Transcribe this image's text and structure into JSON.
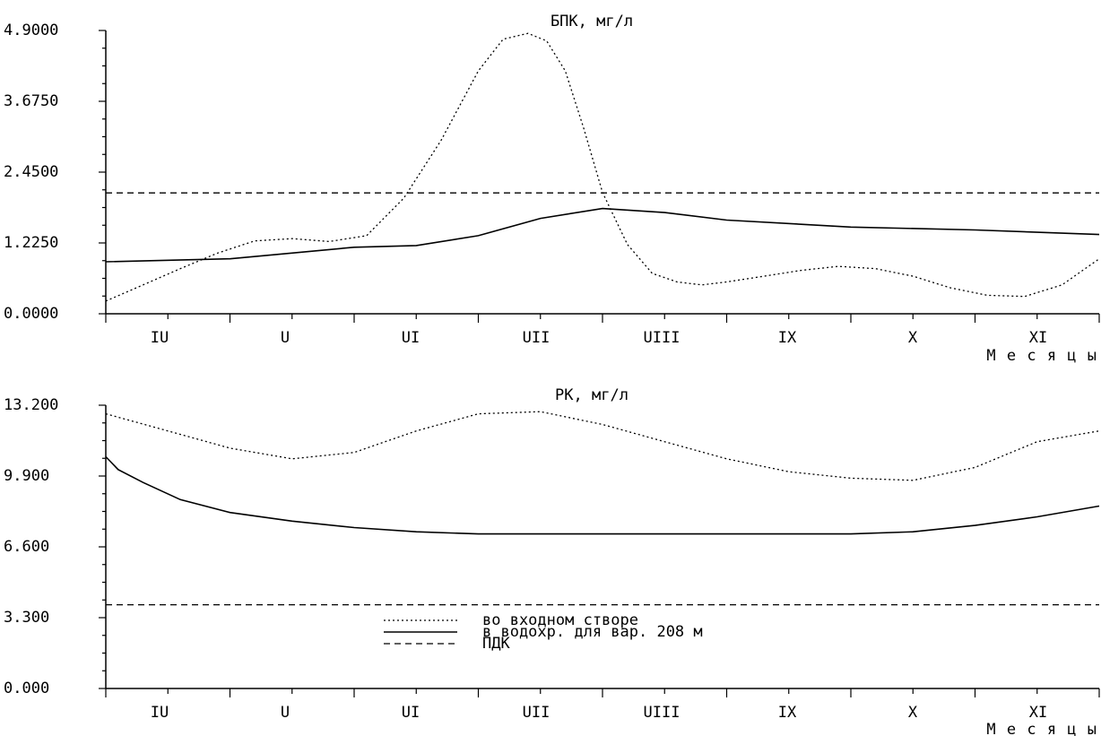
{
  "chart_data": [
    {
      "type": "line",
      "title": "БПК, мг/л",
      "xlabel": "М е с я ц ы",
      "categories": [
        "IU",
        "U",
        "UI",
        "UII",
        "UIII",
        "IX",
        "X",
        "XI"
      ],
      "xlim": [
        0,
        8
      ],
      "ylim": [
        0,
        4.9
      ],
      "yticks": [
        "0.0000",
        "1.2250",
        "2.4500",
        "3.6750",
        "4.9000"
      ],
      "grid": false,
      "series": [
        {
          "name": "во входном створе",
          "style": "dotted",
          "x": [
            0,
            0.3,
            0.6,
            0.9,
            1.2,
            1.5,
            1.8,
            2.1,
            2.4,
            2.7,
            3.0,
            3.2,
            3.4,
            3.55,
            3.7,
            3.85,
            4.0,
            4.2,
            4.4,
            4.6,
            4.8,
            5.0,
            5.3,
            5.6,
            5.9,
            6.2,
            6.5,
            6.8,
            7.1,
            7.4,
            7.7,
            8.0
          ],
          "y": [
            0.22,
            0.5,
            0.78,
            1.05,
            1.26,
            1.3,
            1.25,
            1.35,
            2.0,
            3.0,
            4.2,
            4.75,
            4.85,
            4.72,
            4.2,
            3.2,
            2.1,
            1.2,
            0.7,
            0.55,
            0.5,
            0.55,
            0.65,
            0.75,
            0.82,
            0.78,
            0.65,
            0.45,
            0.32,
            0.3,
            0.5,
            0.95
          ]
        },
        {
          "name": "в водохр. для вар. 208 м",
          "style": "solid",
          "x": [
            0,
            1,
            2,
            2.5,
            3,
            3.5,
            4,
            4.5,
            5,
            6,
            7,
            8
          ],
          "y": [
            0.9,
            0.95,
            1.15,
            1.18,
            1.35,
            1.65,
            1.82,
            1.75,
            1.62,
            1.5,
            1.45,
            1.37
          ]
        },
        {
          "name": "ПДК",
          "style": "dashed",
          "x": [
            0,
            8
          ],
          "y": [
            2.09,
            2.09
          ]
        }
      ]
    },
    {
      "type": "line",
      "title": "РК, мг/л",
      "xlabel": "М е с я ц ы",
      "categories": [
        "IU",
        "U",
        "UI",
        "UII",
        "UIII",
        "IX",
        "X",
        "XI"
      ],
      "xlim": [
        0,
        8
      ],
      "ylim": [
        0,
        13.2
      ],
      "yticks": [
        "0.000",
        "3.300",
        "6.600",
        "9.900",
        "13.200"
      ],
      "grid": false,
      "legend_position": "lower-center",
      "series": [
        {
          "name": "во входном створе",
          "style": "dotted",
          "x": [
            0,
            0.5,
            1.0,
            1.5,
            2.0,
            2.5,
            3.0,
            3.5,
            4.0,
            4.5,
            5.0,
            5.5,
            6.0,
            6.5,
            7.0,
            7.5,
            8.0
          ],
          "y": [
            12.8,
            12.0,
            11.2,
            10.7,
            11.0,
            12.0,
            12.8,
            12.9,
            12.3,
            11.5,
            10.7,
            10.1,
            9.8,
            9.7,
            10.3,
            11.5,
            12.0
          ]
        },
        {
          "name": "в водохр. для вар. 208 м",
          "style": "solid",
          "x": [
            0,
            0.1,
            0.3,
            0.6,
            1.0,
            1.5,
            2.0,
            2.5,
            3.0,
            4.0,
            5.0,
            6.0,
            6.5,
            7.0,
            7.5,
            8.0
          ],
          "y": [
            10.8,
            10.2,
            9.6,
            8.8,
            8.2,
            7.8,
            7.5,
            7.3,
            7.2,
            7.2,
            7.2,
            7.2,
            7.3,
            7.6,
            8.0,
            8.5
          ]
        },
        {
          "name": "ПДК",
          "style": "dashed",
          "x": [
            0,
            8
          ],
          "y": [
            3.9,
            3.9
          ]
        }
      ]
    }
  ]
}
